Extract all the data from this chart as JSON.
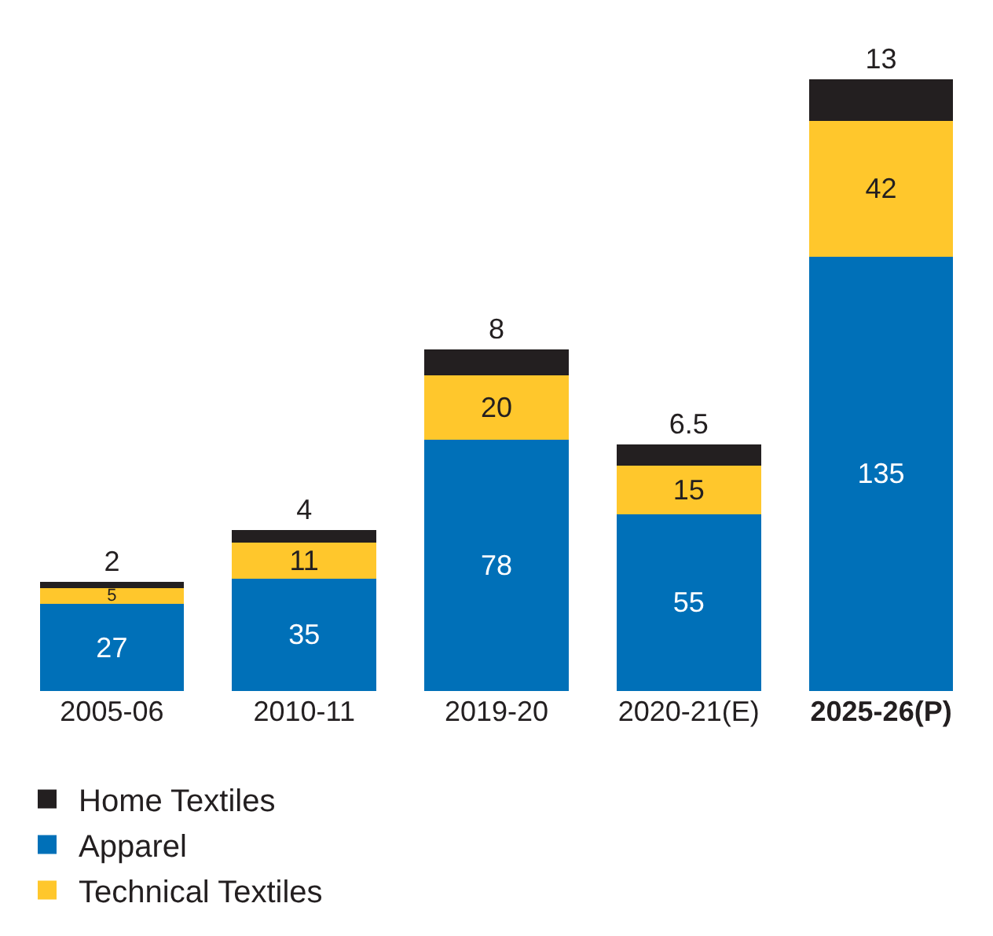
{
  "chart_data": {
    "type": "bar",
    "stacked": true,
    "data_labels": true,
    "legend": "bottom",
    "categories": [
      "2005-06",
      "2010-11",
      "2019-20",
      "2020-21(E)",
      "2025-26(P)"
    ],
    "series": [
      {
        "name": "Apparel",
        "color": "#0070b8",
        "values": [
          27,
          35,
          78,
          55,
          135
        ]
      },
      {
        "name": "Technical Textiles",
        "color": "#ffc72c",
        "values": [
          5,
          11,
          20,
          15,
          42
        ]
      },
      {
        "name": "Home Textiles",
        "color": "#231f20",
        "values": [
          2,
          4,
          8,
          6.5,
          13
        ]
      }
    ]
  }
}
